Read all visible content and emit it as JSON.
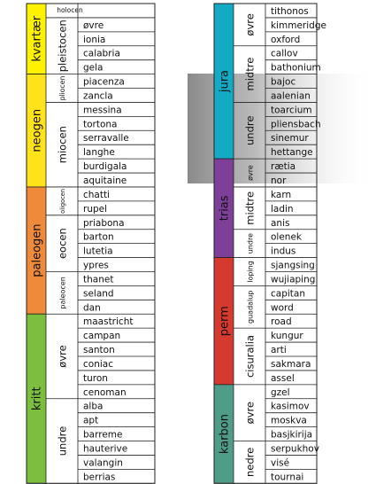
{
  "left_table": {
    "periods": [
      {
        "name": "kvartær",
        "epochs": [
          {
            "name": "holocen",
            "stages": []
          },
          {
            "name": "pleistocen",
            "stages": [
              "øvre",
              "ionia",
              "calabria",
              "gela"
            ]
          }
        ]
      },
      {
        "name": "neogen",
        "epochs": [
          {
            "name": "pliocen",
            "stages": [
              "piacenza",
              "zancla"
            ]
          },
          {
            "name": "miocen",
            "stages": [
              "messina",
              "tortona",
              "serravalle",
              "langhe",
              "burdigala",
              "aquitaine"
            ]
          }
        ]
      },
      {
        "name": "paleogen",
        "epochs": [
          {
            "name": "oligocen",
            "stages": [
              "chatti",
              "rupel"
            ]
          },
          {
            "name": "eocen",
            "stages": [
              "priabona",
              "barton",
              "lutetia",
              "ypres"
            ]
          },
          {
            "name": "paleocen",
            "stages": [
              "thanet",
              "seland",
              "dan"
            ]
          }
        ]
      },
      {
        "name": "kritt",
        "epochs": [
          {
            "name": "øvre",
            "stages": [
              "maastricht",
              "campan",
              "santon",
              "coniac",
              "turon",
              "cenoman"
            ]
          },
          {
            "name": "undre",
            "stages": [
              "alba",
              "apt",
              "barreme",
              "hauterive",
              "valangin",
              "berrias"
            ]
          }
        ]
      }
    ]
  },
  "right_table": {
    "periods": [
      {
        "name": "jura",
        "epochs": [
          {
            "name": "øvre",
            "stages": [
              "tithonos",
              "kimmeridge",
              "oxford"
            ]
          },
          {
            "name": "midtre",
            "stages": [
              "callov",
              "bathonium",
              "bajoc",
              "aalenian"
            ]
          },
          {
            "name": "undre",
            "stages": [
              "toarcium",
              "pliensbach",
              "sinemur",
              "hettange"
            ]
          }
        ]
      },
      {
        "name": "trias",
        "epochs": [
          {
            "name": "øvre",
            "stages": [
              "rætia",
              "nor"
            ]
          },
          {
            "name": "midtre",
            "stages": [
              "karn",
              "ladin",
              "anis"
            ]
          },
          {
            "name": "undre",
            "stages": [
              "olenek",
              "indus"
            ]
          }
        ]
      },
      {
        "name": "perm",
        "epochs": [
          {
            "name": "loping",
            "stages": [
              "sjangsing",
              "wujiaping"
            ]
          },
          {
            "name": "guadalup",
            "stages": [
              "capitan",
              "word",
              "road"
            ]
          },
          {
            "name": "cisuralia",
            "stages": [
              "kungur",
              "arti",
              "sakmara",
              "assel"
            ]
          }
        ]
      },
      {
        "name": "karbon",
        "epochs": [
          {
            "name": "øvre",
            "stages": [
              "gzel",
              "kasimov",
              "moskva",
              "basjkirija"
            ]
          },
          {
            "name": "nedre",
            "stages": [
              "serpukhov",
              "visé",
              "tournai"
            ]
          }
        ]
      }
    ]
  }
}
